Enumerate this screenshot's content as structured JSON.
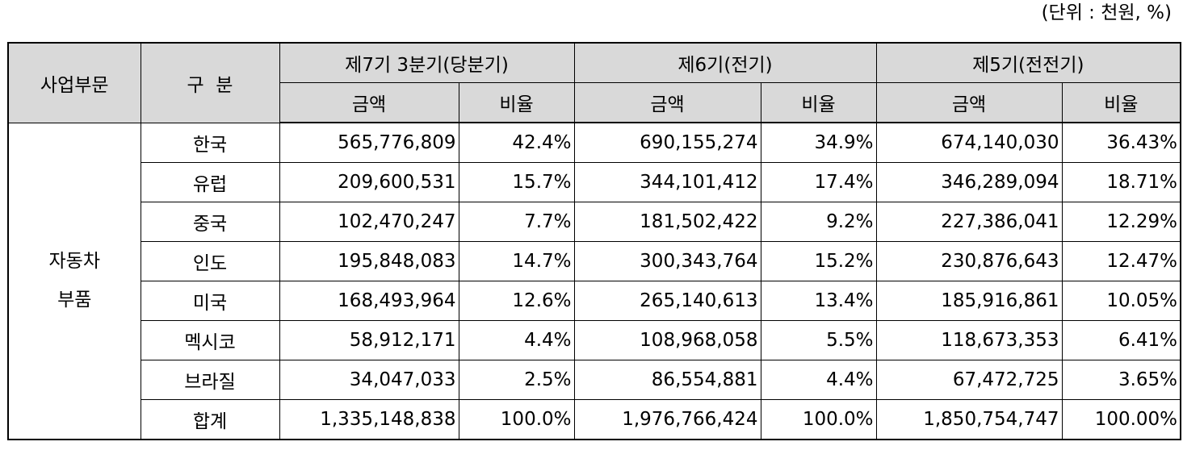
{
  "unit_note": "(단위 : 천원, %)",
  "header": {
    "segment": "사업부문",
    "category": "구  분",
    "periods": [
      "제7기 3분기(당분기)",
      "제6기(전기)",
      "제5기(전전기)"
    ],
    "amount": "금액",
    "ratio": "비율"
  },
  "segment": {
    "line1": "자동차",
    "line2": "부품"
  },
  "rows": [
    {
      "region": "한국",
      "p7_amount": "565,776,809",
      "p7_ratio": "42.4%",
      "p6_amount": "690,155,274",
      "p6_ratio": "34.9%",
      "p5_amount": "674,140,030",
      "p5_ratio": "36.43%"
    },
    {
      "region": "유럽",
      "p7_amount": "209,600,531",
      "p7_ratio": "15.7%",
      "p6_amount": "344,101,412",
      "p6_ratio": "17.4%",
      "p5_amount": "346,289,094",
      "p5_ratio": "18.71%"
    },
    {
      "region": "중국",
      "p7_amount": "102,470,247",
      "p7_ratio": "7.7%",
      "p6_amount": "181,502,422",
      "p6_ratio": "9.2%",
      "p5_amount": "227,386,041",
      "p5_ratio": "12.29%"
    },
    {
      "region": "인도",
      "p7_amount": "195,848,083",
      "p7_ratio": "14.7%",
      "p6_amount": "300,343,764",
      "p6_ratio": "15.2%",
      "p5_amount": "230,876,643",
      "p5_ratio": "12.47%"
    },
    {
      "region": "미국",
      "p7_amount": "168,493,964",
      "p7_ratio": "12.6%",
      "p6_amount": "265,140,613",
      "p6_ratio": "13.4%",
      "p5_amount": "185,916,861",
      "p5_ratio": "10.05%"
    },
    {
      "region": "멕시코",
      "p7_amount": "58,912,171",
      "p7_ratio": "4.4%",
      "p6_amount": "108,968,058",
      "p6_ratio": "5.5%",
      "p5_amount": "118,673,353",
      "p5_ratio": "6.41%"
    },
    {
      "region": "브라질",
      "p7_amount": "34,047,033",
      "p7_ratio": "2.5%",
      "p6_amount": "86,554,881",
      "p6_ratio": "4.4%",
      "p5_amount": "67,472,725",
      "p5_ratio": "3.65%"
    },
    {
      "region": "합계",
      "p7_amount": "1,335,148,838",
      "p7_ratio": "100.0%",
      "p6_amount": "1,976,766,424",
      "p6_ratio": "100.0%",
      "p5_amount": "1,850,754,747",
      "p5_ratio": "100.00%"
    }
  ]
}
